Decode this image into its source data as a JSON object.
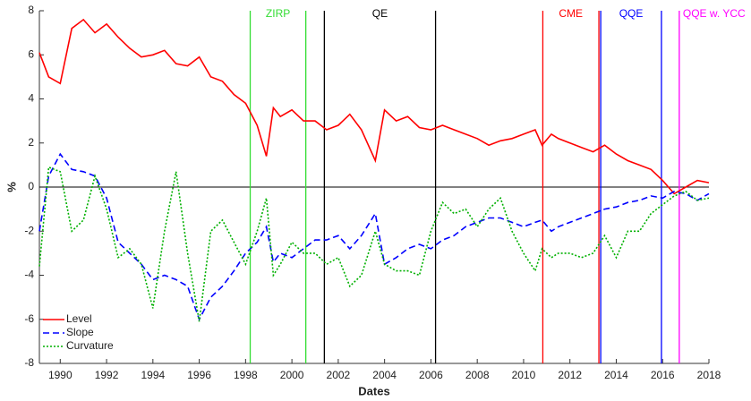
{
  "chart_data": {
    "type": "line",
    "x": [
      1989.1,
      1989.5,
      1990.0,
      1990.5,
      1991.0,
      1991.5,
      1992.0,
      1992.5,
      1993.0,
      1993.5,
      1994.0,
      1994.5,
      1995.0,
      1995.5,
      1996.0,
      1996.5,
      1997.0,
      1997.5,
      1998.0,
      1998.5,
      1998.9,
      1999.2,
      1999.5,
      2000.0,
      2000.5,
      2001.0,
      2001.5,
      2002.0,
      2002.5,
      2003.0,
      2003.6,
      2004.0,
      2004.5,
      2005.0,
      2005.5,
      2006.0,
      2006.5,
      2007.0,
      2007.5,
      2008.0,
      2008.5,
      2009.0,
      2009.5,
      2010.0,
      2010.5,
      2010.8,
      2011.2,
      2011.5,
      2012.0,
      2012.5,
      2013.0,
      2013.5,
      2014.0,
      2014.5,
      2015.0,
      2015.5,
      2016.0,
      2016.5,
      2017.0,
      2017.5,
      2018.0
    ],
    "series": [
      {
        "name": "Level",
        "color": "#ff0000",
        "dash": "solid",
        "values": [
          6.1,
          5.0,
          4.7,
          7.2,
          7.6,
          7.0,
          7.4,
          6.8,
          6.3,
          5.9,
          6.0,
          6.2,
          5.6,
          5.5,
          5.9,
          5.0,
          4.8,
          4.2,
          3.8,
          2.8,
          1.4,
          3.6,
          3.2,
          3.5,
          3.0,
          3.0,
          2.6,
          2.8,
          3.3,
          2.6,
          1.2,
          3.5,
          3.0,
          3.2,
          2.7,
          2.6,
          2.8,
          2.6,
          2.4,
          2.2,
          1.9,
          2.1,
          2.2,
          2.4,
          2.6,
          1.9,
          2.4,
          2.2,
          2.0,
          1.8,
          1.6,
          1.9,
          1.5,
          1.2,
          1.0,
          0.8,
          0.3,
          -0.3,
          0.0,
          0.3,
          0.2
        ]
      },
      {
        "name": "Slope",
        "color": "#0000ff",
        "dash": "dashed",
        "values": [
          -2.0,
          0.5,
          1.5,
          0.8,
          0.7,
          0.5,
          -0.5,
          -2.5,
          -3.0,
          -3.5,
          -4.2,
          -4.0,
          -4.2,
          -4.5,
          -6.0,
          -5.0,
          -4.5,
          -3.8,
          -3.0,
          -2.5,
          -1.8,
          -3.4,
          -3.0,
          -3.2,
          -2.8,
          -2.4,
          -2.4,
          -2.2,
          -2.8,
          -2.2,
          -1.2,
          -3.5,
          -3.2,
          -2.8,
          -2.6,
          -2.8,
          -2.4,
          -2.2,
          -1.8,
          -1.6,
          -1.4,
          -1.4,
          -1.6,
          -1.8,
          -1.6,
          -1.5,
          -2.0,
          -1.8,
          -1.6,
          -1.4,
          -1.2,
          -1.0,
          -0.9,
          -0.7,
          -0.6,
          -0.4,
          -0.5,
          -0.2,
          -0.3,
          -0.6,
          -0.3
        ]
      },
      {
        "name": "Curvature",
        "color": "#00b000",
        "dash": "dotted",
        "values": [
          -3.6,
          0.9,
          0.7,
          -2.0,
          -1.5,
          0.5,
          -1.0,
          -3.2,
          -2.8,
          -3.5,
          -5.5,
          -2.0,
          0.7,
          -3.0,
          -6.1,
          -2.0,
          -1.5,
          -2.5,
          -3.5,
          -2.0,
          -0.5,
          -4.0,
          -3.5,
          -2.5,
          -3.0,
          -3.0,
          -3.5,
          -3.2,
          -4.5,
          -4.0,
          -2.0,
          -3.5,
          -3.8,
          -3.8,
          -4.0,
          -2.0,
          -0.7,
          -1.2,
          -1.0,
          -1.8,
          -1.0,
          -0.5,
          -2.0,
          -3.0,
          -3.8,
          -2.8,
          -3.2,
          -3.0,
          -3.0,
          -3.2,
          -3.0,
          -2.2,
          -3.2,
          -2.0,
          -2.0,
          -1.2,
          -0.8,
          -0.4,
          -0.2,
          -0.6,
          -0.5
        ]
      }
    ],
    "events": [
      {
        "label": "ZIRP",
        "color": "#33dd33",
        "start": 1998.2,
        "end": 2000.6
      },
      {
        "label": "QE",
        "color": "#000000",
        "start": 2001.4,
        "end": 2006.2
      },
      {
        "label": "CME",
        "color": "#ff0000",
        "start": 2010.83,
        "end": 2013.25
      },
      {
        "label": "QQE",
        "color": "#0000ff",
        "start": 2013.33,
        "end": 2015.95
      },
      {
        "label": "QQE w. YCC",
        "color": "#ff00ff",
        "start": 2016.72
      }
    ],
    "xlabel": "Dates",
    "ylabel": "%",
    "xlim": [
      1989.1,
      2018
    ],
    "ylim": [
      -8,
      8
    ],
    "xticks": [
      1990,
      1992,
      1994,
      1996,
      1998,
      2000,
      2002,
      2004,
      2006,
      2008,
      2010,
      2012,
      2014,
      2016,
      2018
    ],
    "yticks": [
      -8,
      -6,
      -4,
      -2,
      0,
      2,
      4,
      6,
      8
    ],
    "zero_line": true,
    "legend": "lower-left"
  }
}
